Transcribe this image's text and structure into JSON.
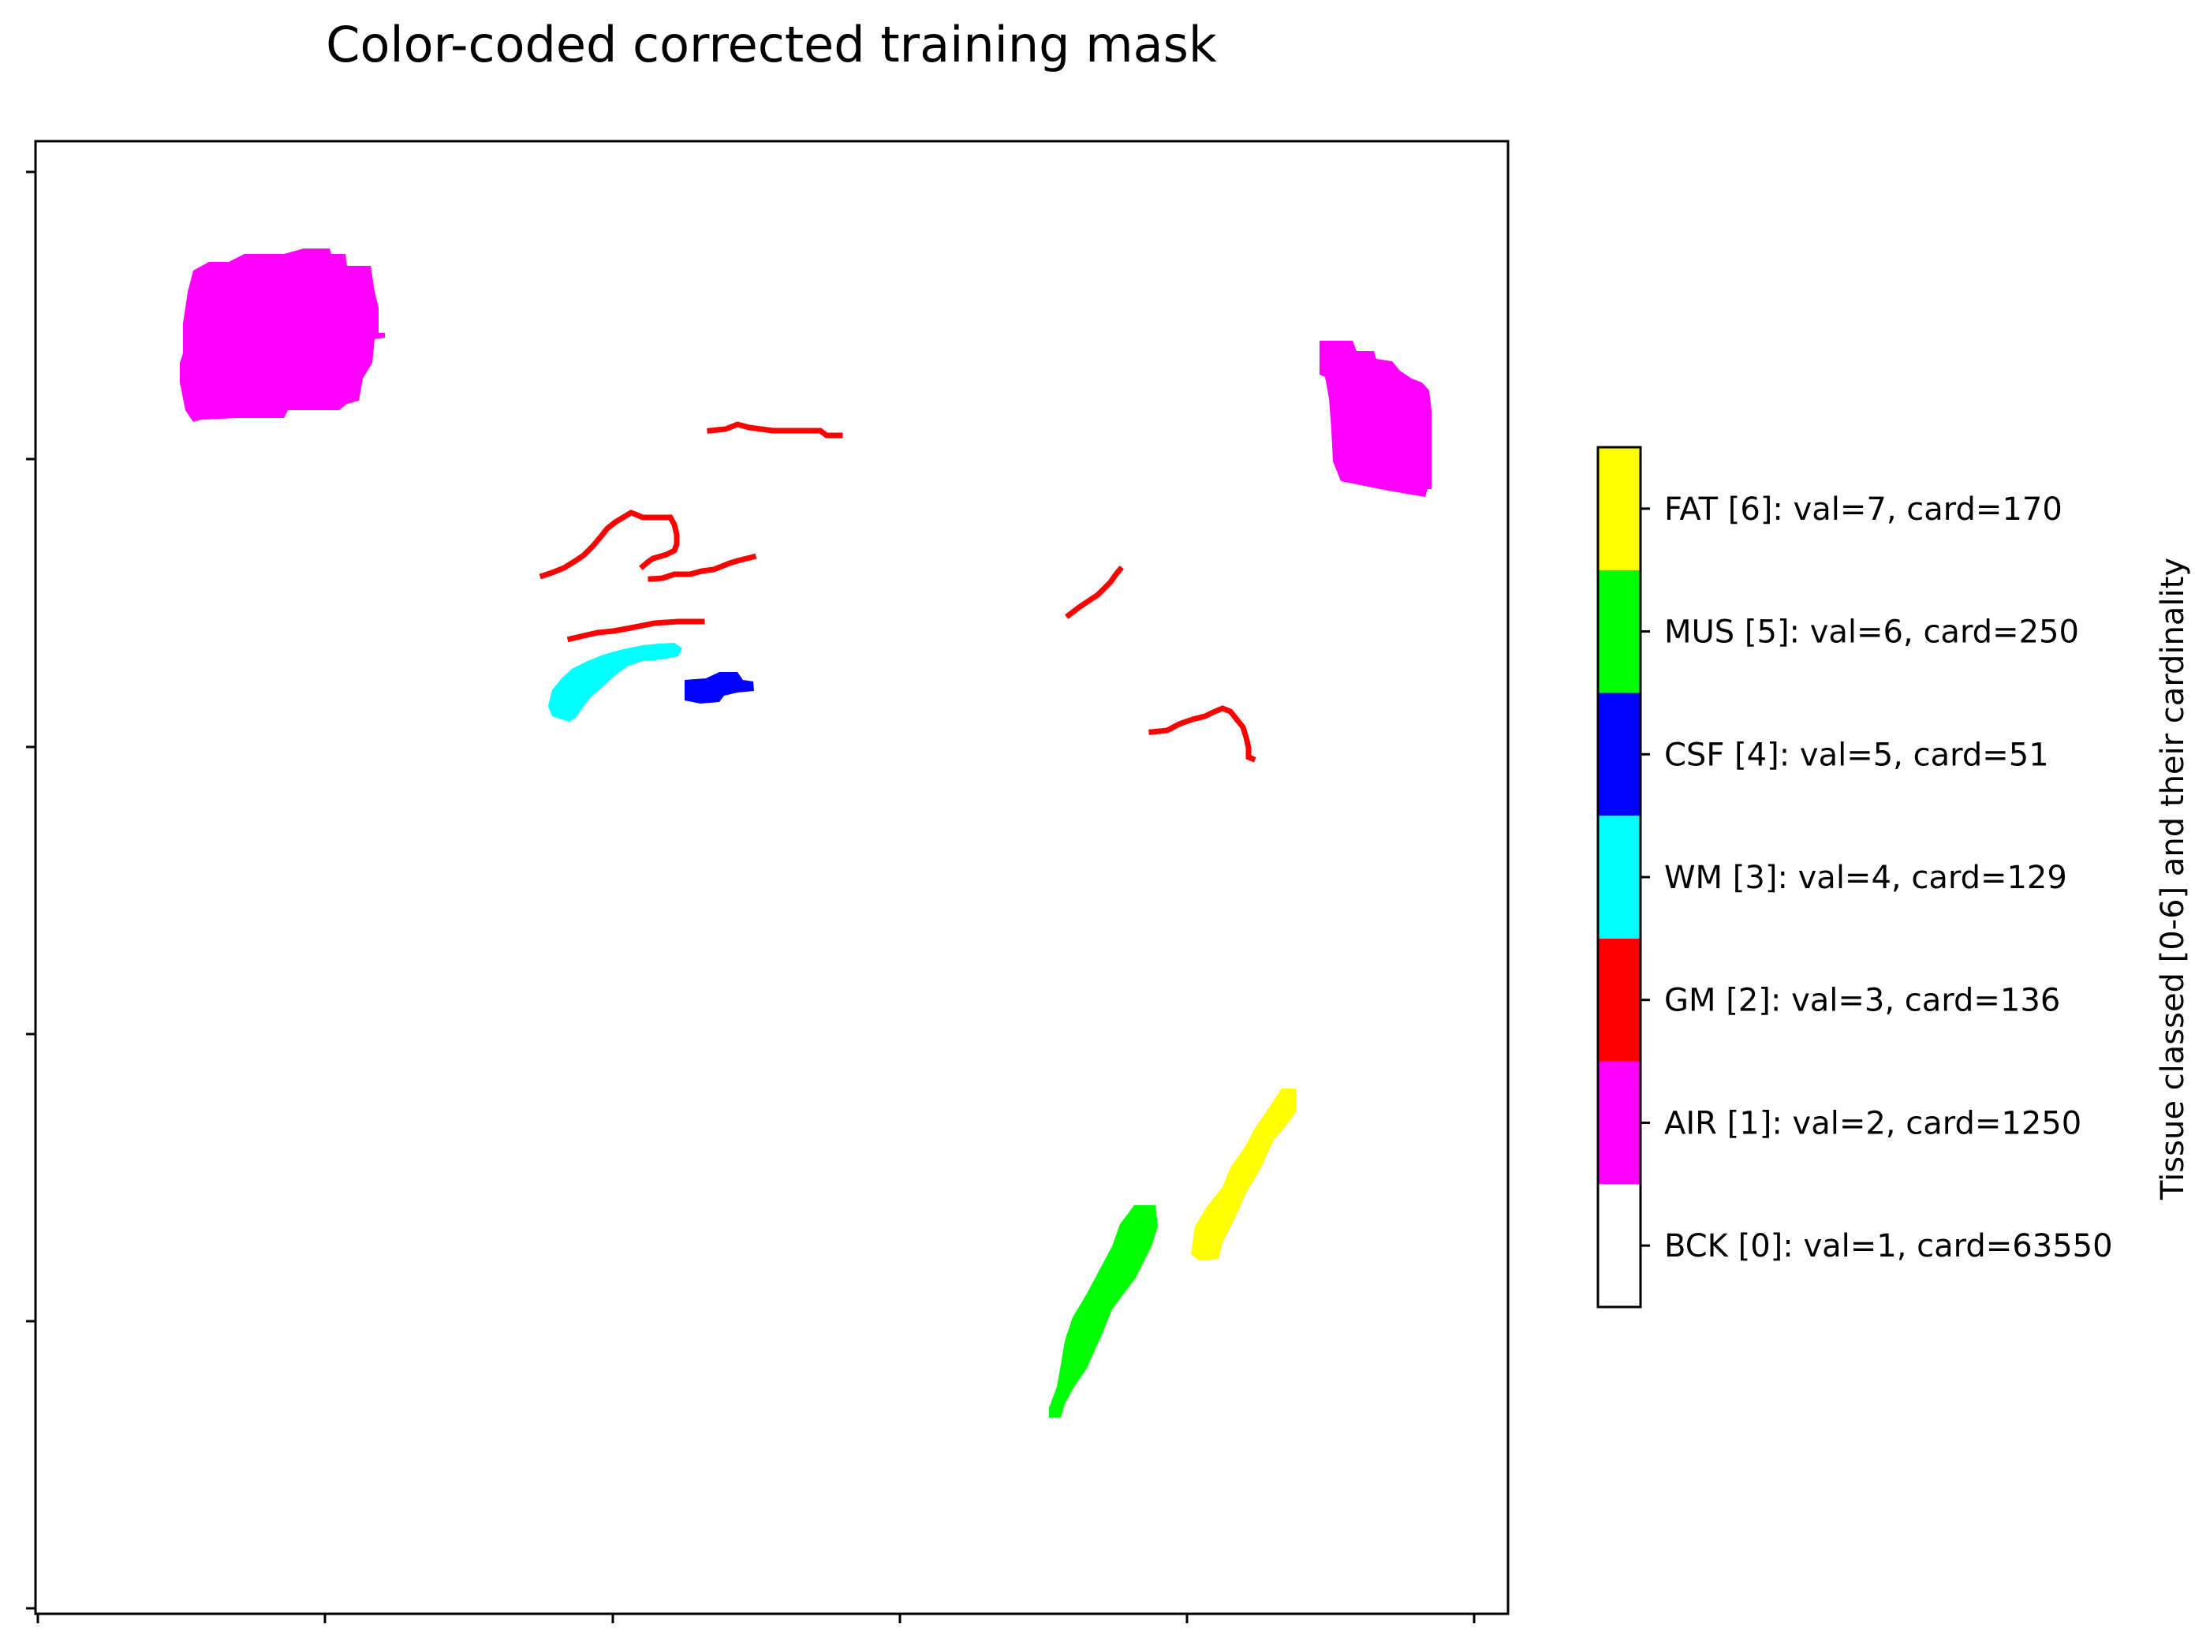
{
  "chart_data": {
    "type": "heatmap",
    "title": "Color-coded corrected training mask",
    "xlabel": "",
    "ylabel": "",
    "x_tick_labels_visible": false,
    "y_tick_labels_visible": false,
    "x_tick_count": 6,
    "y_tick_count": 6,
    "grid": false,
    "colorbar": {
      "placement": "right",
      "label": "Tissue classed [0-6] and their cardinality",
      "classes": [
        {
          "name": "BCK [0]: val=1, card=63550",
          "value": 1,
          "card": 63550,
          "color": "#ffffff"
        },
        {
          "name": "AIR [1]: val=2, card=1250",
          "value": 2,
          "card": 1250,
          "color": "#ff00ff"
        },
        {
          "name": "GM [2]: val=3, card=136",
          "value": 3,
          "card": 136,
          "color": "#ff0000"
        },
        {
          "name": "WM [3]: val=4, card=129",
          "value": 4,
          "card": 129,
          "color": "#00ffff"
        },
        {
          "name": "CSF [4]: val=5, card=51",
          "value": 5,
          "card": 51,
          "color": "#0000ff"
        },
        {
          "name": "MUS [5]: val=6, card=250",
          "value": 6,
          "card": 250,
          "color": "#00ff00"
        },
        {
          "name": "FAT [6]: val=7, card=170",
          "value": 7,
          "card": 170,
          "color": "#ffff00"
        }
      ]
    },
    "regions": [
      {
        "class": "AIR",
        "color": "#ff00ff",
        "location": "upper-left"
      },
      {
        "class": "AIR",
        "color": "#ff00ff",
        "location": "upper-right"
      },
      {
        "class": "GM",
        "color": "#ff0000",
        "location": "center-left thin curves"
      },
      {
        "class": "GM",
        "color": "#ff0000",
        "location": "center-right thin curves"
      },
      {
        "class": "WM",
        "color": "#00ffff",
        "location": "center-left"
      },
      {
        "class": "CSF",
        "color": "#0000ff",
        "location": "center-left"
      },
      {
        "class": "MUS",
        "color": "#00ff00",
        "location": "lower-right"
      },
      {
        "class": "FAT",
        "color": "#ffff00",
        "location": "lower-right"
      }
    ]
  }
}
